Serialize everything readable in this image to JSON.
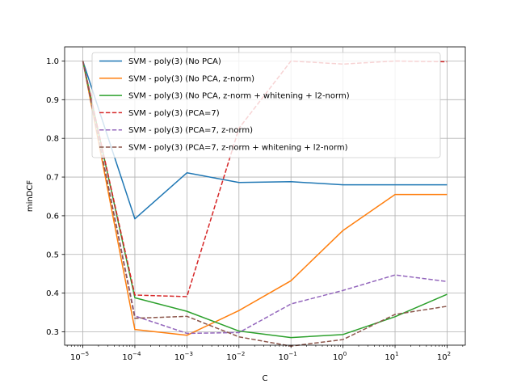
{
  "chart_data": {
    "type": "line",
    "title": "",
    "xlabel": "C",
    "ylabel": "minDCF",
    "xscale": "log",
    "x": [
      1e-05,
      0.0001,
      0.001,
      0.01,
      0.1,
      1,
      10,
      100
    ],
    "x_tick_bases": [
      "10",
      "10",
      "10",
      "10",
      "10",
      "10",
      "10",
      "10"
    ],
    "x_tick_exponents": [
      "−5",
      "−4",
      "−3",
      "−2",
      "−1",
      "0",
      "1",
      "2"
    ],
    "y_ticks": [
      "0.3",
      "0.4",
      "0.5",
      "0.6",
      "0.7",
      "0.8",
      "0.9",
      "1.0"
    ],
    "ylim": [
      0.2655,
      1.0365
    ],
    "grid": true,
    "legend_position": "top",
    "series": [
      {
        "name": "SVM - poly(3) (No PCA)",
        "color": "#1f77b4",
        "dash": "solid",
        "values": [
          1.0,
          0.592,
          0.711,
          0.686,
          0.688,
          0.68,
          0.68,
          0.68
        ]
      },
      {
        "name": "SVM - poly(3) (No PCA, z-norm)",
        "color": "#ff7f0e",
        "dash": "solid",
        "values": [
          1.0,
          0.306,
          0.291,
          0.355,
          0.432,
          0.562,
          0.655,
          0.655
        ]
      },
      {
        "name": "SVM - poly(3) (No PCA, z-norm + whitening + l2-norm)",
        "color": "#2ca02c",
        "dash": "solid",
        "values": [
          1.0,
          0.388,
          0.353,
          0.302,
          0.285,
          0.293,
          0.339,
          0.397
        ]
      },
      {
        "name": "SVM - poly(3) (PCA=7)",
        "color": "#d62728",
        "dash": "dashed",
        "values": [
          1.0,
          0.395,
          0.391,
          0.826,
          1.0,
          0.992,
          1.0,
          0.998
        ]
      },
      {
        "name": "SVM - poly(3) (PCA=7, z-norm)",
        "color": "#9467bd",
        "dash": "dashed",
        "values": [
          1.0,
          0.341,
          0.296,
          0.298,
          0.372,
          0.407,
          0.447,
          0.43
        ]
      },
      {
        "name": "SVM - poly(3) (PCA=7, z-norm + whitening + l2-norm)",
        "color": "#8c564b",
        "dash": "dashed",
        "values": [
          1.0,
          0.335,
          0.34,
          0.287,
          0.263,
          0.28,
          0.345,
          0.366
        ]
      }
    ]
  }
}
